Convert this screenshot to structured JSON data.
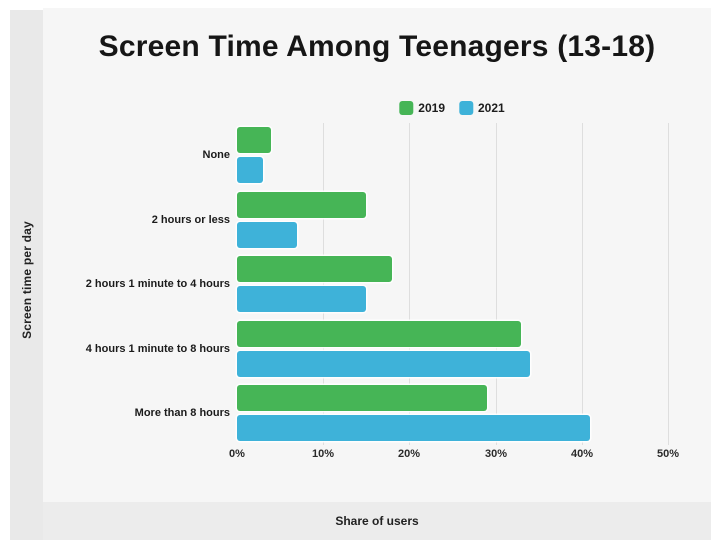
{
  "title": "Screen Time Among Teenagers (13-18)",
  "chart_data": {
    "type": "bar",
    "orientation": "horizontal",
    "title": "Screen Time Among Teenagers (13-18)",
    "categories": [
      "None",
      "2 hours or less",
      "2 hours 1 minute to 4 hours",
      "4 hours 1 minute to 8 hours",
      "More than 8 hours"
    ],
    "series": [
      {
        "name": "2019",
        "color": "#46b556",
        "values": [
          4,
          15,
          18,
          33,
          29
        ]
      },
      {
        "name": "2021",
        "color": "#3eb2d9",
        "values": [
          3,
          7,
          15,
          34,
          41
        ]
      }
    ],
    "xlabel": "Share of users",
    "ylabel": "Screen time per day",
    "xlim": [
      0,
      50
    ],
    "xticks": [
      "0%",
      "10%",
      "20%",
      "30%",
      "40%",
      "50%"
    ],
    "grid": true,
    "legend_position": "top-center"
  },
  "colors": {
    "panel_bg": "#f6f6f6",
    "strip_bg": "#e9e9e9",
    "footer_bg": "#ececec",
    "gridline": "#dedede",
    "text": "#1d1d1d",
    "series_2019": "#46b556",
    "series_2021": "#3eb2d9"
  }
}
